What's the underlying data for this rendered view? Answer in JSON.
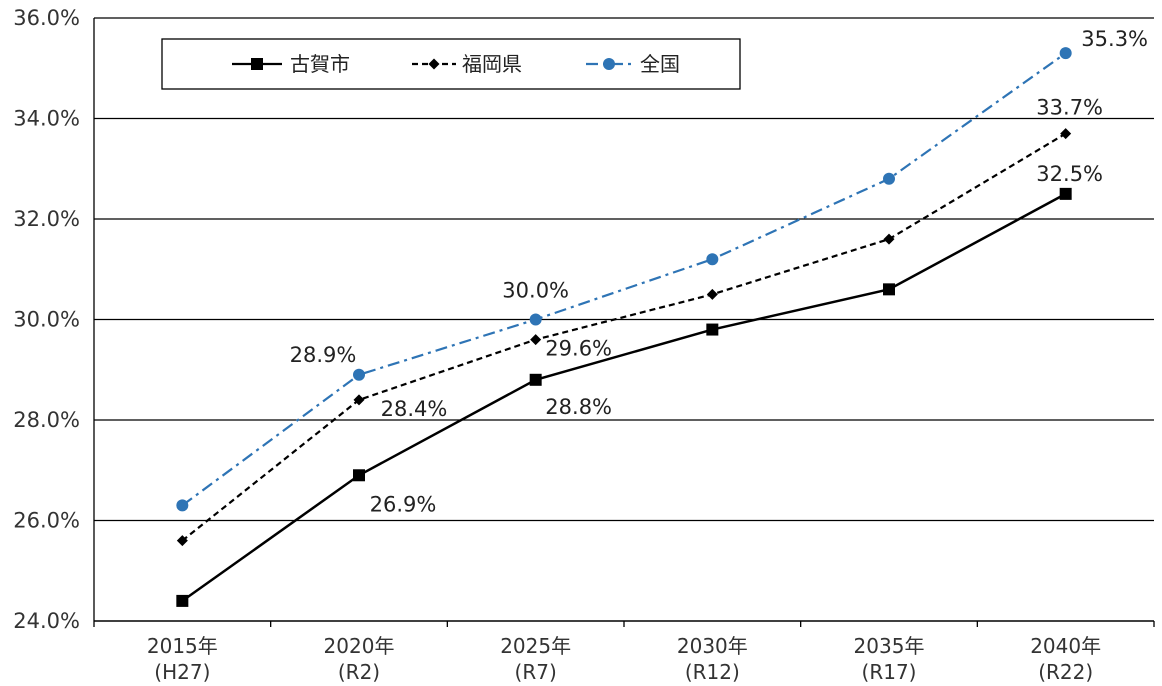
{
  "chart_data": {
    "type": "line",
    "title": "",
    "xlabel": "",
    "ylabel": "",
    "categories": [
      [
        "2015年",
        "(H27)"
      ],
      [
        "2020年",
        "(R2)"
      ],
      [
        "2025年",
        "(R7)"
      ],
      [
        "2030年",
        "(R12)"
      ],
      [
        "2035年",
        "(R17)"
      ],
      [
        "2040年",
        "(R22)"
      ]
    ],
    "ylim": [
      24.0,
      36.0
    ],
    "yticks": [
      24.0,
      26.0,
      28.0,
      30.0,
      32.0,
      34.0,
      36.0
    ],
    "ytick_labels": [
      "24.0%",
      "26.0%",
      "28.0%",
      "30.0%",
      "32.0%",
      "34.0%",
      "36.0%"
    ],
    "grid": true,
    "legend_position": "top-left",
    "series": [
      {
        "name": "古賀市",
        "values": [
          24.4,
          26.9,
          28.8,
          29.8,
          30.6,
          32.5
        ],
        "color": "#000000",
        "line_style": "solid",
        "marker": "square",
        "data_labels": [
          null,
          "26.9%",
          "28.8%",
          null,
          null,
          "32.5%"
        ]
      },
      {
        "name": "福岡県",
        "values": [
          25.6,
          28.4,
          29.6,
          30.5,
          31.6,
          33.7
        ],
        "color": "#000000",
        "line_style": "dashed",
        "marker": "diamond",
        "data_labels": [
          null,
          "28.4%",
          "29.6%",
          null,
          null,
          "33.7%"
        ]
      },
      {
        "name": "全国",
        "values": [
          26.3,
          28.9,
          30.0,
          31.2,
          32.8,
          35.3
        ],
        "color": "#2e74b5",
        "line_style": "dash-dot",
        "marker": "circle",
        "data_labels": [
          null,
          "28.9%",
          "30.0%",
          null,
          null,
          "35.3%"
        ]
      }
    ]
  }
}
